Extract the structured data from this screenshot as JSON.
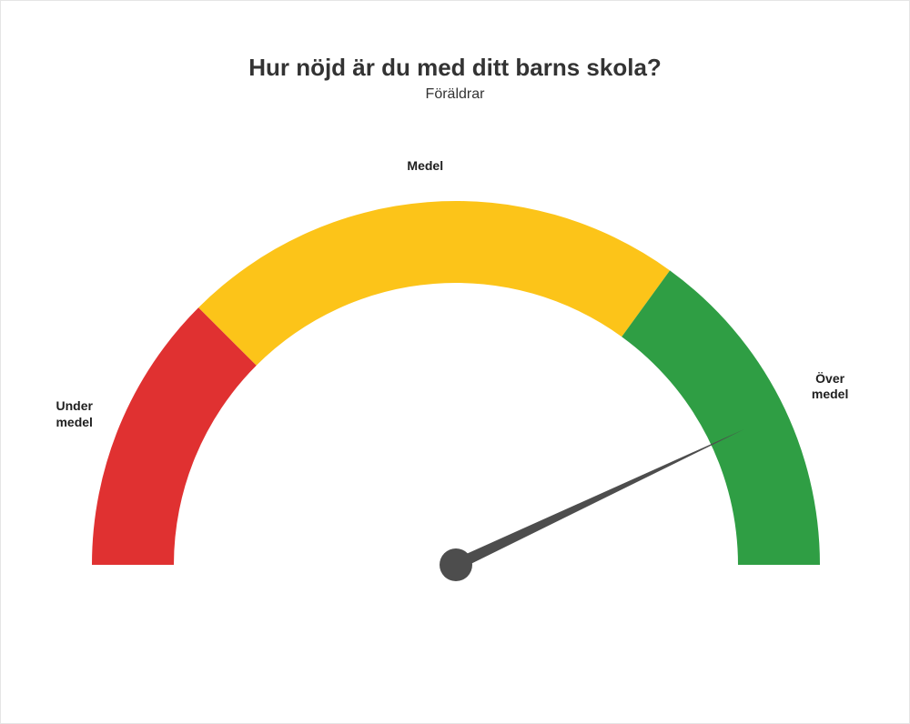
{
  "title": "Hur nöjd är du med ditt barns skola?",
  "subtitle": "Föräldrar",
  "gauge": {
    "type": "gauge",
    "value": 86,
    "min": 0,
    "max": 100,
    "segments": [
      {
        "from": 0,
        "to": 25,
        "color": "#e03131",
        "label": "Under\nmedel"
      },
      {
        "from": 25,
        "to": 70,
        "color": "#fcc419",
        "label": "Medel"
      },
      {
        "from": 70,
        "to": 100,
        "color": "#2f9e44",
        "label": "Över\nmedel"
      }
    ],
    "outer_radius": 400,
    "inner_radius": 310,
    "needle_color": "#4d4d4d",
    "needle_length": 350,
    "needle_base_radius": 18,
    "background_color": "#ffffff",
    "title_fontsize": 26,
    "subtitle_fontsize": 16,
    "label_fontsize": 14,
    "label_fontweight": 700,
    "text_color": "#333333"
  }
}
